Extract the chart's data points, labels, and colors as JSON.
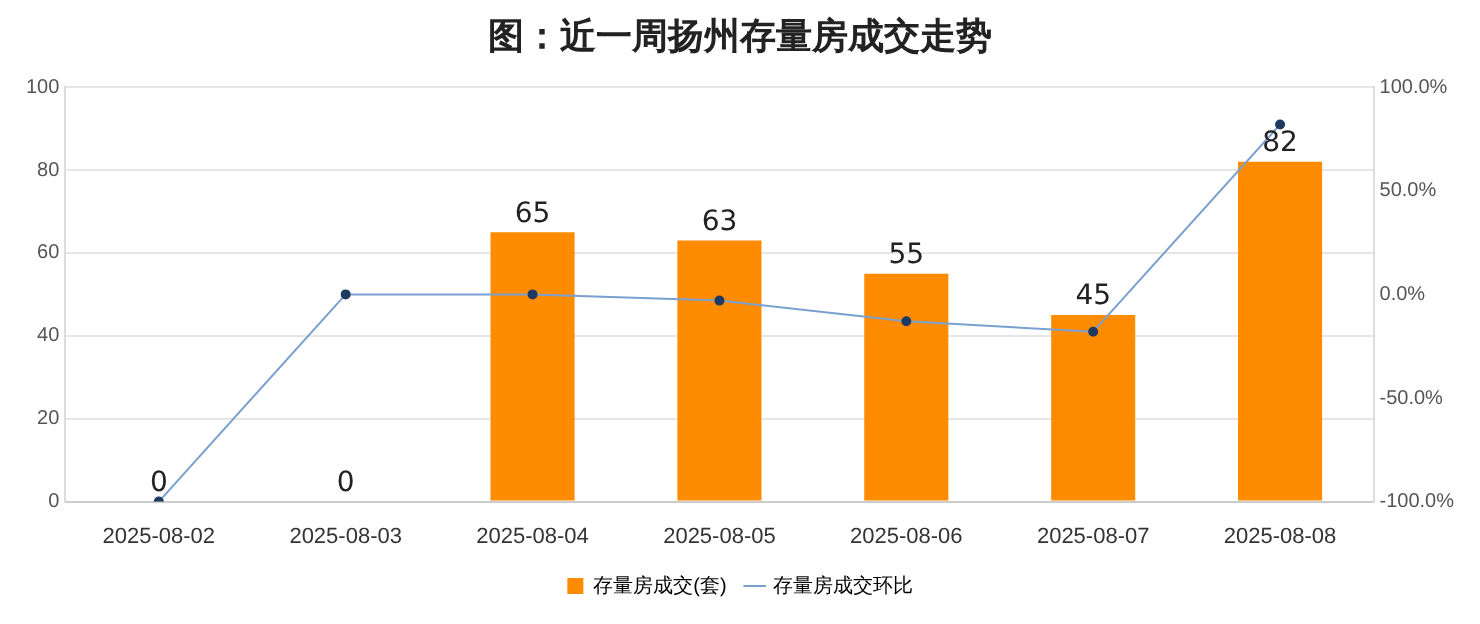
{
  "chart_data": {
    "type": "bar",
    "title": "图：近一周扬州存量房成交走势",
    "categories": [
      "2025-08-02",
      "2025-08-03",
      "2025-08-04",
      "2025-08-05",
      "2025-08-06",
      "2025-08-07",
      "2025-08-08"
    ],
    "series": [
      {
        "name": "存量房成交(套)",
        "color": "#ff8c00",
        "values": [
          0,
          0,
          65,
          63,
          55,
          45,
          82
        ],
        "value_labels": [
          "0",
          "0",
          "65",
          "63",
          "55",
          "45",
          "82"
        ]
      },
      {
        "name": "存量房成交环比",
        "type": "line",
        "axis": "y2",
        "color": "#7aa0d0",
        "values": [
          -100,
          0,
          0,
          -3,
          -13,
          -18,
          82
        ]
      }
    ],
    "ylim": [
      0,
      100
    ],
    "yticks": [
      0,
      20,
      40,
      60,
      80,
      100
    ],
    "y2lim": [
      -100,
      100
    ],
    "y2ticks": [
      {
        "value": -100,
        "label": "-100.0%"
      },
      {
        "value": -50,
        "label": "-50.0%"
      },
      {
        "value": 0,
        "label": "0.0%"
      },
      {
        "value": 50,
        "label": "50.0%"
      },
      {
        "value": 100,
        "label": "100.0%"
      }
    ],
    "grid": "y",
    "legend": "bottom",
    "marker": "circle",
    "line_style": "solid"
  }
}
